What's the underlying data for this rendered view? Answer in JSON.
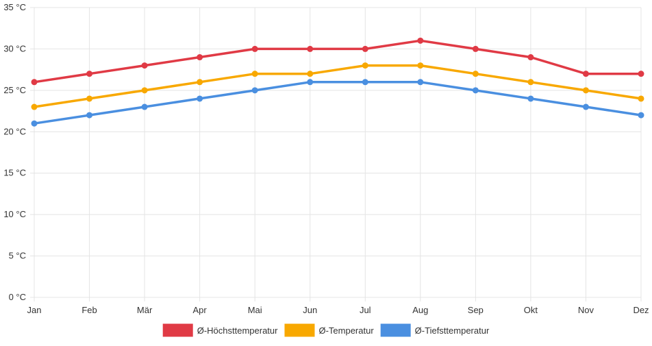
{
  "chart_data": {
    "type": "line",
    "categories": [
      "Jan",
      "Feb",
      "Mär",
      "Apr",
      "Mai",
      "Jun",
      "Jul",
      "Aug",
      "Sep",
      "Okt",
      "Nov",
      "Dez"
    ],
    "ylim": [
      0,
      35
    ],
    "yticks": [
      0,
      5,
      10,
      15,
      20,
      25,
      30,
      35
    ],
    "ytick_labels": [
      "0 °C",
      "5 °C",
      "10 °C",
      "15 °C",
      "20 °C",
      "25 °C",
      "30 °C",
      "35 °C"
    ],
    "grid": true,
    "legend_position": "bottom",
    "series": [
      {
        "name": "Ø-Höchsttemperatur",
        "color": "#e03a45",
        "values": [
          26,
          27,
          28,
          29,
          30,
          30,
          30,
          31,
          30,
          29,
          27,
          27
        ]
      },
      {
        "name": "Ø-Temperatur",
        "color": "#f8a800",
        "values": [
          23,
          24,
          25,
          26,
          27,
          27,
          28,
          28,
          27,
          26,
          25,
          24
        ]
      },
      {
        "name": "Ø-Tiefsttemperatur",
        "color": "#4a8fe0",
        "values": [
          21,
          22,
          23,
          24,
          25,
          26,
          26,
          26,
          25,
          24,
          23,
          22
        ]
      }
    ]
  }
}
